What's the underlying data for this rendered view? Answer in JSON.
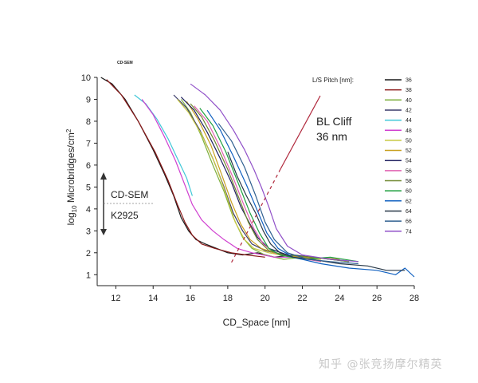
{
  "chart_data": {
    "type": "line",
    "corner_label": "CD-SEM",
    "xlabel": "CD_Space  [nm]",
    "ylabel_prefix": "log",
    "ylabel_sub": "10",
    "ylabel_main": " Microbridges/cm",
    "ylabel_sup": "2",
    "xlim": [
      11,
      28
    ],
    "ylim": [
      0.5,
      10
    ],
    "xticks": [
      12,
      14,
      16,
      18,
      20,
      22,
      24,
      26,
      28
    ],
    "yticks": [
      1,
      2,
      3,
      4,
      5,
      6,
      7,
      8,
      9,
      10
    ],
    "legend_title": "L/S Pitch [nm]:",
    "annotations": {
      "cliff_line1": "BL Cliff",
      "cliff_line2": "36 nm",
      "upper_method": "CD-SEM",
      "lower_method": "K2925"
    },
    "series": [
      {
        "name": "36",
        "color": "#1a1a1a",
        "x": [
          11.2,
          11.8,
          12.5,
          13.2,
          14.0,
          14.6,
          15.1,
          15.5,
          15.9,
          16.3,
          16.8,
          17.4,
          18.0,
          18.8,
          19.6,
          20.5,
          21.5,
          22.5
        ],
        "y": [
          10.0,
          9.7,
          9.0,
          8.0,
          6.7,
          5.6,
          4.6,
          3.6,
          3.0,
          2.6,
          2.4,
          2.2,
          2.0,
          1.9,
          2.0,
          1.8,
          1.9,
          1.8
        ]
      },
      {
        "name": "38",
        "color": "#8b1a1a",
        "x": [
          11.5,
          12.3,
          13.2,
          14.1,
          14.8,
          15.3,
          15.7,
          16.1,
          16.6,
          17.3,
          18.2,
          19.0,
          20.0
        ],
        "y": [
          9.9,
          9.2,
          8.0,
          6.6,
          5.3,
          4.2,
          3.4,
          2.8,
          2.4,
          2.2,
          2.0,
          1.9,
          1.8
        ]
      },
      {
        "name": "40",
        "color": "#7fb040",
        "x": [
          15.5,
          16.0,
          16.6,
          17.2,
          17.8,
          18.3,
          18.8,
          19.3,
          20.0,
          21.0,
          22.0,
          23.0
        ],
        "y": [
          9.0,
          8.4,
          7.3,
          6.0,
          4.8,
          3.6,
          2.7,
          2.2,
          1.9,
          1.7,
          1.8,
          1.6
        ]
      },
      {
        "name": "42",
        "color": "#3a3a6a",
        "x": [
          15.1,
          15.8,
          16.5,
          17.2,
          17.8,
          18.3,
          18.8,
          19.3,
          20.0,
          21.0,
          22.5,
          24.0
        ],
        "y": [
          9.2,
          8.6,
          7.6,
          6.3,
          5.0,
          3.8,
          3.0,
          2.4,
          2.1,
          1.9,
          1.8,
          1.7
        ]
      },
      {
        "name": "44",
        "color": "#40c8d8",
        "x": [
          13.0,
          13.6,
          14.2,
          14.8,
          15.3,
          15.8,
          16.1
        ],
        "y": [
          9.2,
          8.8,
          8.1,
          7.2,
          6.3,
          5.4,
          4.6
        ]
      },
      {
        "name": "48",
        "color": "#d040d0",
        "x": [
          13.4,
          14.0,
          14.6,
          15.2,
          15.7,
          16.1,
          16.6,
          17.2,
          17.8,
          18.5,
          19.3,
          20.5,
          22.0
        ],
        "y": [
          9.0,
          8.3,
          7.3,
          6.2,
          5.1,
          4.2,
          3.5,
          3.0,
          2.6,
          2.2,
          2.0,
          1.8,
          1.8
        ]
      },
      {
        "name": "50",
        "color": "#c8c840",
        "x": [
          15.3,
          15.9,
          16.6,
          17.3,
          17.9,
          18.4,
          18.9,
          19.4,
          20.2,
          21.5,
          23.0
        ],
        "y": [
          9.0,
          8.4,
          7.4,
          6.1,
          4.7,
          3.4,
          2.6,
          2.2,
          2.0,
          1.8,
          1.7
        ]
      },
      {
        "name": "52",
        "color": "#c8a020",
        "x": [
          15.8,
          16.4,
          17.1,
          17.7,
          18.2,
          18.7,
          19.2,
          19.8,
          20.8,
          22.0,
          24.0
        ],
        "y": [
          8.9,
          8.1,
          6.9,
          5.5,
          4.3,
          3.3,
          2.6,
          2.2,
          1.9,
          1.8,
          1.7
        ]
      },
      {
        "name": "54",
        "color": "#202060",
        "x": [
          15.5,
          16.2,
          16.9,
          17.6,
          18.2,
          18.7,
          19.2,
          19.6,
          20.2,
          21.2,
          22.5,
          24.5
        ],
        "y": [
          9.1,
          8.5,
          7.5,
          6.3,
          5.2,
          4.1,
          3.3,
          2.7,
          2.2,
          1.9,
          1.8,
          1.6
        ]
      },
      {
        "name": "56",
        "color": "#e060b0",
        "x": [
          16.2,
          16.9,
          17.6,
          18.3,
          18.9,
          19.4,
          19.9,
          20.5,
          21.5,
          23.0
        ],
        "y": [
          8.7,
          8.0,
          6.8,
          5.4,
          4.1,
          3.1,
          2.4,
          2.0,
          1.8,
          1.6
        ]
      },
      {
        "name": "58",
        "color": "#708830",
        "x": [
          16.0,
          16.6,
          17.3,
          18.0,
          18.6,
          19.1,
          19.6,
          20.2,
          21.0,
          22.5,
          24.5
        ],
        "y": [
          8.8,
          8.2,
          7.1,
          5.8,
          4.5,
          3.4,
          2.6,
          2.1,
          1.9,
          1.8,
          1.6
        ]
      },
      {
        "name": "60",
        "color": "#20a040",
        "x": [
          16.5,
          17.2,
          17.9,
          18.6,
          19.2,
          19.7,
          20.2,
          20.8,
          22.0,
          23.5,
          25.0
        ],
        "y": [
          8.6,
          7.8,
          6.6,
          5.1,
          3.8,
          2.9,
          2.2,
          1.9,
          1.7,
          1.8,
          1.6
        ]
      },
      {
        "name": "62",
        "color": "#1060c0",
        "x": [
          16.9,
          17.6,
          18.3,
          19.0,
          19.6,
          20.1,
          20.7,
          21.5,
          23.0,
          24.5,
          26.0,
          27.0,
          27.5,
          28.0
        ],
        "y": [
          8.5,
          7.6,
          6.4,
          5.1,
          3.9,
          2.9,
          2.2,
          1.8,
          1.5,
          1.3,
          1.2,
          1.0,
          1.3,
          0.9
        ]
      },
      {
        "name": "64",
        "color": "#283848",
        "x": [
          18.0,
          18.5,
          19.0,
          19.5,
          19.9,
          20.3,
          20.8,
          21.5,
          22.5,
          24.0,
          25.5,
          26.5,
          27.5
        ],
        "y": [
          6.6,
          5.5,
          4.6,
          3.8,
          3.0,
          2.4,
          2.0,
          1.8,
          1.7,
          1.5,
          1.4,
          1.2,
          1.2
        ]
      },
      {
        "name": "66",
        "color": "#306090",
        "x": [
          17.5,
          18.2,
          18.9,
          19.5,
          20.0,
          20.5,
          21.2,
          22.3,
          23.5,
          25.0
        ],
        "y": [
          7.9,
          7.1,
          5.9,
          4.6,
          3.4,
          2.6,
          2.0,
          1.7,
          1.6,
          1.5
        ]
      },
      {
        "name": "74",
        "color": "#9050c8",
        "x": [
          16.0,
          16.8,
          17.6,
          18.3,
          18.9,
          19.4,
          19.8,
          20.2,
          20.6,
          21.2,
          22.0,
          23.5,
          25.0
        ],
        "y": [
          9.7,
          9.2,
          8.5,
          7.6,
          6.7,
          5.8,
          5.0,
          4.1,
          3.1,
          2.3,
          1.9,
          1.7,
          1.6
        ]
      }
    ]
  },
  "watermark": "知乎 @张竞扬摩尔精英"
}
